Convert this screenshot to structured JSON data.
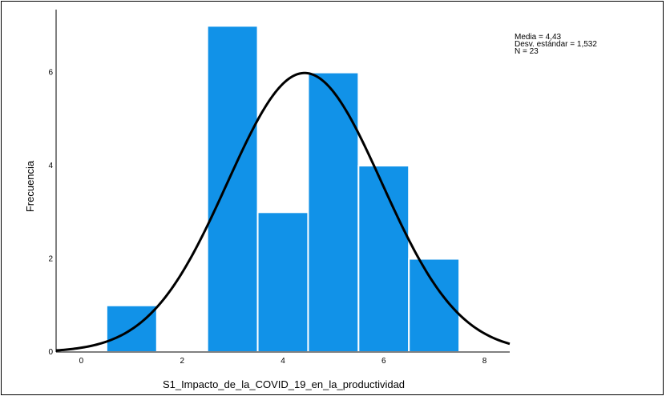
{
  "chart_data": {
    "type": "bar",
    "subtype": "histogram",
    "xlabel": "S1_Impacto_de_la_COVID_19_en_la_productividad",
    "ylabel": "Frecuencia",
    "bins": [
      {
        "x0": 0.5,
        "x1": 1.5,
        "value": 1
      },
      {
        "x0": 2.5,
        "x1": 3.5,
        "value": 7
      },
      {
        "x0": 3.5,
        "x1": 4.5,
        "value": 3
      },
      {
        "x0": 4.5,
        "x1": 5.5,
        "value": 6
      },
      {
        "x0": 5.5,
        "x1": 6.5,
        "value": 4
      },
      {
        "x0": 6.5,
        "x1": 7.5,
        "value": 2
      }
    ],
    "x_ticks": [
      "0",
      "2",
      "4",
      "6",
      "8"
    ],
    "x_tick_values": [
      0,
      2,
      4,
      6,
      8
    ],
    "y_ticks": [
      "0",
      "2",
      "4",
      "6"
    ],
    "y_tick_values": [
      0,
      2,
      4,
      6
    ],
    "xlim": [
      -0.5,
      8.5
    ],
    "ylim": [
      0,
      7.35
    ],
    "grid": false,
    "bar_color": "#1192e8",
    "curve_color": "#000000",
    "normal_curve": {
      "mean": 4.43,
      "sd": 1.532,
      "n": 23,
      "bin_width": 1
    },
    "stats": {
      "media": "Media = 4,43",
      "desv": "Desv. estándar = 1,532",
      "n": "N = 23"
    }
  }
}
